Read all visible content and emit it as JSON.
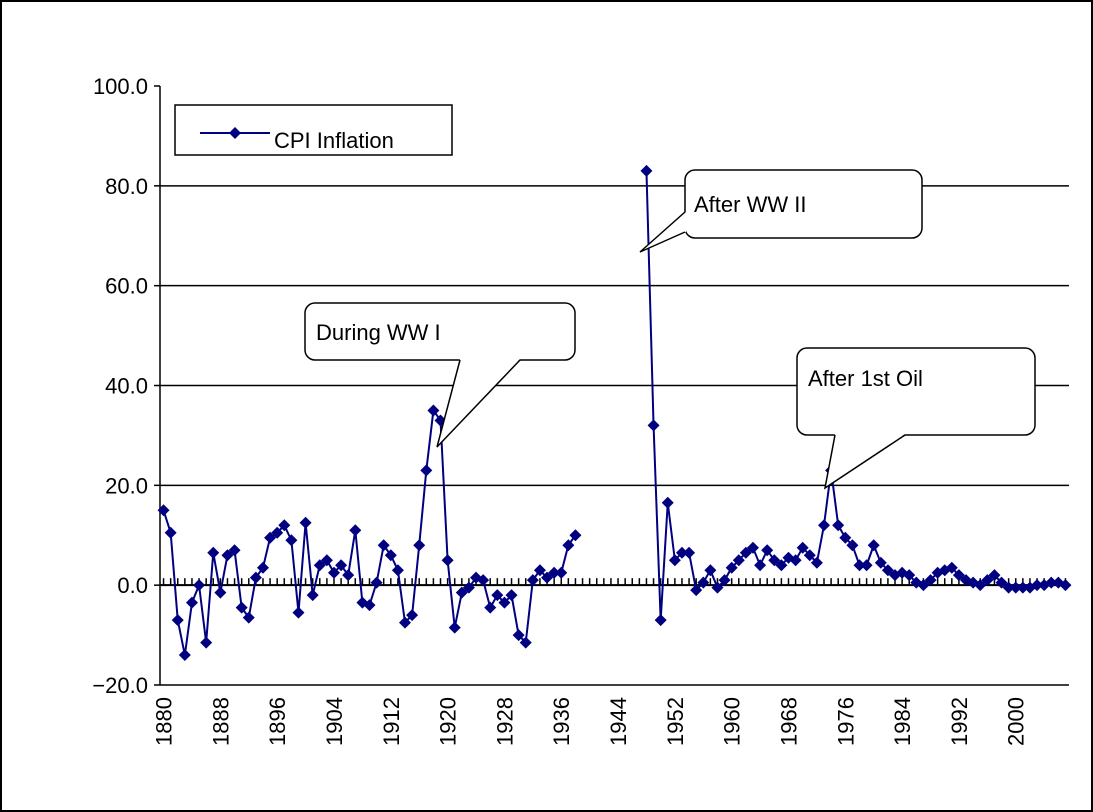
{
  "chart_data": {
    "type": "line",
    "x": [
      1880,
      1881,
      1882,
      1883,
      1884,
      1885,
      1886,
      1887,
      1888,
      1889,
      1890,
      1891,
      1892,
      1893,
      1894,
      1895,
      1896,
      1897,
      1898,
      1899,
      1900,
      1901,
      1902,
      1903,
      1904,
      1905,
      1906,
      1907,
      1908,
      1909,
      1910,
      1911,
      1912,
      1913,
      1914,
      1915,
      1916,
      1917,
      1918,
      1919,
      1920,
      1921,
      1922,
      1923,
      1924,
      1925,
      1926,
      1927,
      1928,
      1929,
      1930,
      1931,
      1932,
      1933,
      1934,
      1935,
      1936,
      1937,
      1938,
      1939,
      1940,
      1941,
      1942,
      1943,
      1944,
      1945,
      1946,
      1947,
      1948,
      1949,
      1950,
      1951,
      1952,
      1953,
      1954,
      1955,
      1956,
      1957,
      1958,
      1959,
      1960,
      1961,
      1962,
      1963,
      1964,
      1965,
      1966,
      1967,
      1968,
      1969,
      1970,
      1971,
      1972,
      1973,
      1974,
      1975,
      1976,
      1977,
      1978,
      1979,
      1980,
      1981,
      1982,
      1983,
      1984,
      1985,
      1986,
      1987,
      1988,
      1989,
      1990,
      1991,
      1992,
      1993,
      1994,
      1995,
      1996,
      1997,
      1998,
      1999,
      2000,
      2001,
      2002,
      2003,
      2004,
      2005,
      2006,
      2007
    ],
    "series": [
      {
        "name": "CPI Inflation",
        "color": "#000080",
        "values": [
          15,
          10.5,
          -7,
          -14,
          -3.5,
          0,
          -11.5,
          6.5,
          -1.5,
          6,
          7,
          -4.5,
          -6.5,
          1.5,
          3.5,
          9.5,
          10.5,
          12,
          9,
          -5.5,
          12.5,
          -2,
          4,
          5,
          2.5,
          4,
          2,
          11,
          -3.5,
          -4,
          0.5,
          8,
          6,
          3,
          -7.5,
          -6,
          8,
          23,
          35,
          33,
          5,
          -8.5,
          -1.5,
          -0.5,
          1.5,
          1,
          -4.5,
          -2,
          -3.5,
          -2,
          -10,
          -11.5,
          1,
          3,
          1.5,
          2.5,
          2.5,
          8,
          10,
          null,
          null,
          null,
          null,
          null,
          null,
          null,
          null,
          null,
          83,
          32,
          -7,
          16.5,
          5,
          6.5,
          6.5,
          -1,
          0.5,
          3,
          -0.5,
          1,
          3.5,
          5,
          6.5,
          7.5,
          4,
          7,
          5,
          4,
          5.5,
          5,
          7.5,
          6,
          4.5,
          12,
          23,
          12,
          9.5,
          8,
          4,
          4,
          8,
          4.5,
          3,
          2,
          2.5,
          2,
          0.5,
          0,
          1,
          2.5,
          3,
          3.5,
          2,
          1,
          0.5,
          0,
          1,
          2,
          0.5,
          -0.5,
          -0.5,
          -0.5,
          -0.5,
          0,
          0,
          0.5,
          0.5,
          0
        ]
      }
    ],
    "xlim": [
      1879.5,
      2007.5
    ],
    "xticks": [
      1880,
      1888,
      1896,
      1904,
      1912,
      1920,
      1928,
      1936,
      1944,
      1952,
      1960,
      1968,
      1976,
      1984,
      1992,
      2000
    ],
    "ylim": [
      -20,
      100
    ],
    "yticks": [
      {
        "value": -20,
        "label": "−20.0"
      },
      {
        "value": 0,
        "label": "0.0"
      },
      {
        "value": 20,
        "label": "20.0"
      },
      {
        "value": 40,
        "label": "40.0"
      },
      {
        "value": 60,
        "label": "60.0"
      },
      {
        "value": 80,
        "label": "80.0"
      },
      {
        "value": 100,
        "label": "100.0"
      }
    ],
    "grid": true,
    "legend": "top-left",
    "annotations": [
      {
        "text": "During WW I"
      },
      {
        "text": "After WW II"
      },
      {
        "text": "After 1st Oil"
      }
    ]
  }
}
